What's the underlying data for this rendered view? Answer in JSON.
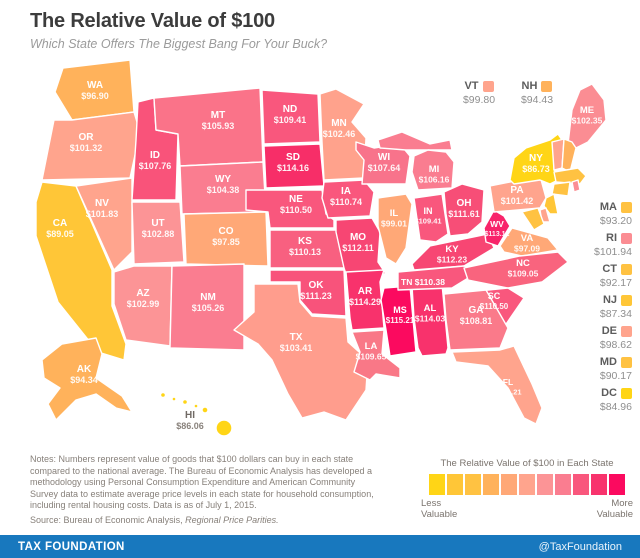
{
  "header": {
    "title": "The Relative Value of $100",
    "subtitle": "Which State Offers The Biggest Bang For Your Buck?"
  },
  "chart_data": {
    "type": "heatmap",
    "subtype": "us-choropleth-map",
    "title": "The Relative Value of $100",
    "value_meaning": "Value of goods that $100 can buy in each state vs national average, as of July 1, 2015",
    "states": [
      {
        "abbr": "WA",
        "value": 96.9,
        "display": "$96.90",
        "color": "#FFB25B"
      },
      {
        "abbr": "OR",
        "value": 101.32,
        "display": "$101.32",
        "color": "#FFA48D"
      },
      {
        "abbr": "CA",
        "value": 89.05,
        "display": "$89.05",
        "color": "#FFC637"
      },
      {
        "abbr": "NV",
        "value": 101.83,
        "display": "$101.83",
        "color": "#FFA48D"
      },
      {
        "abbr": "ID",
        "value": 107.76,
        "display": "$107.76",
        "color": "#F9537A"
      },
      {
        "abbr": "MT",
        "value": 105.93,
        "display": "$105.93",
        "color": "#FA7389"
      },
      {
        "abbr": "WY",
        "value": 104.38,
        "display": "$104.38",
        "color": "#FA7D90"
      },
      {
        "abbr": "UT",
        "value": 102.88,
        "display": "$102.88",
        "color": "#FC9496"
      },
      {
        "abbr": "CO",
        "value": 97.85,
        "display": "$97.85",
        "color": "#FFA877"
      },
      {
        "abbr": "AZ",
        "value": 102.99,
        "display": "$102.99",
        "color": "#FC9496"
      },
      {
        "abbr": "NM",
        "value": 105.26,
        "display": "$105.26",
        "color": "#FA7D90"
      },
      {
        "abbr": "ND",
        "value": 109.41,
        "display": "$109.41",
        "color": "#F9577D"
      },
      {
        "abbr": "SD",
        "value": 114.16,
        "display": "$114.16",
        "color": "#F72E68"
      },
      {
        "abbr": "NE",
        "value": 110.5,
        "display": "$110.50",
        "color": "#F9577D"
      },
      {
        "abbr": "KS",
        "value": 110.13,
        "display": "$110.13",
        "color": "#F86080"
      },
      {
        "abbr": "OK",
        "value": 111.23,
        "display": "$111.23",
        "color": "#F8537B"
      },
      {
        "abbr": "TX",
        "value": 103.41,
        "display": "$103.41",
        "color": "#FF9D8D"
      },
      {
        "abbr": "MN",
        "value": 102.46,
        "display": "$102.46",
        "color": "#FFA28C"
      },
      {
        "abbr": "IA",
        "value": 110.74,
        "display": "$110.74",
        "color": "#F9577D"
      },
      {
        "abbr": "MO",
        "value": 112.11,
        "display": "$112.11",
        "color": "#F74673"
      },
      {
        "abbr": "AR",
        "value": 114.29,
        "display": "$114.29",
        "color": "#F8326C"
      },
      {
        "abbr": "LA",
        "value": 109.65,
        "display": "$109.65",
        "color": "#F97887"
      },
      {
        "abbr": "MS",
        "value": 115.21,
        "display": "$115.21",
        "color": "#FB0A5F"
      },
      {
        "abbr": "AL",
        "value": 114.03,
        "display": "$114.03",
        "color": "#F8326C"
      },
      {
        "abbr": "WI",
        "value": 107.64,
        "display": "$107.64",
        "color": "#F8738B"
      },
      {
        "abbr": "IL",
        "value": 99.01,
        "display": "$99.01",
        "color": "#FFA877"
      },
      {
        "abbr": "IN",
        "value": 109.41,
        "display": "$109.41",
        "color": "#F9577D"
      },
      {
        "abbr": "MI",
        "value": 106.16,
        "display": "$106.16",
        "color": "#FA7D90"
      },
      {
        "abbr": "OH",
        "value": 111.61,
        "display": "$111.61",
        "color": "#F74E77"
      },
      {
        "abbr": "KY",
        "value": 112.23,
        "display": "$112.23",
        "color": "#F74673"
      },
      {
        "abbr": "TN",
        "value": 110.38,
        "display": "$110.38",
        "color": "#F9577D"
      },
      {
        "abbr": "WV",
        "value": 113.12,
        "display": "$113.12",
        "color": "#F8246A"
      },
      {
        "abbr": "VA",
        "value": 97.09,
        "display": "$97.09",
        "color": "#FFA877"
      },
      {
        "abbr": "NC",
        "value": 109.05,
        "display": "$109.05",
        "color": "#F9647E"
      },
      {
        "abbr": "SC",
        "value": 110.5,
        "display": "$110.50",
        "color": "#F9577D"
      },
      {
        "abbr": "GA",
        "value": 108.81,
        "display": "$108.81",
        "color": "#FA7A8A"
      },
      {
        "abbr": "FL",
        "value": 101.21,
        "display": "$101.21",
        "color": "#FFA48D"
      },
      {
        "abbr": "PA",
        "value": 101.42,
        "display": "$101.42",
        "color": "#FFA48D"
      },
      {
        "abbr": "NY",
        "value": 86.73,
        "display": "$86.73",
        "color": "#FFD516"
      },
      {
        "abbr": "ME",
        "value": 102.35,
        "display": "$102.35",
        "color": "#FB8D93"
      },
      {
        "abbr": "VT",
        "value": 99.8,
        "display": "$99.80",
        "color": "#FFA48D"
      },
      {
        "abbr": "NH",
        "value": 94.43,
        "display": "$94.43",
        "color": "#FFB25B"
      },
      {
        "abbr": "MA",
        "value": 93.2,
        "display": "$93.20",
        "color": "#FFC242"
      },
      {
        "abbr": "RI",
        "value": 101.94,
        "display": "$101.94",
        "color": "#FB8D93"
      },
      {
        "abbr": "CT",
        "value": 92.17,
        "display": "$92.17",
        "color": "#FFC242"
      },
      {
        "abbr": "NJ",
        "value": 87.34,
        "display": "$87.34",
        "color": "#FFC637"
      },
      {
        "abbr": "DE",
        "value": 98.62,
        "display": "$98.62",
        "color": "#FFA48D"
      },
      {
        "abbr": "MD",
        "value": 90.17,
        "display": "$90.17",
        "color": "#FFC242"
      },
      {
        "abbr": "DC",
        "value": 84.96,
        "display": "$84.96",
        "color": "#FFD516"
      },
      {
        "abbr": "AK",
        "value": 94.34,
        "display": "$94.34",
        "color": "#FFB25B"
      },
      {
        "abbr": "HI",
        "value": 86.06,
        "display": "$86.06",
        "color": "#FFD516"
      }
    ],
    "callouts_top": [
      "VT",
      "NH"
    ],
    "callouts_right": [
      "MA",
      "RI",
      "CT",
      "NJ",
      "DE",
      "MD",
      "DC"
    ]
  },
  "legend": {
    "title": "The Relative Value of $100 in Each State",
    "colors": [
      "#FFD516",
      "#FFC637",
      "#FFC242",
      "#FFB25B",
      "#FFA877",
      "#FFA48D",
      "#FC9496",
      "#FA7D90",
      "#F9577D",
      "#F8336D",
      "#FB0A5F"
    ],
    "less_label": "Less Valuable",
    "more_label": "More Valuable"
  },
  "notes": {
    "text": "Notes: Numbers represent value of goods that $100 dollars can buy in each state compared to the national average. The Bureau of Economic Analysis has developed a methodology using Personal Consumption Expenditure and American Community Survey data to estimate average price levels in each state for household consumption, including rental housing costs. Data is as of July 1, 2015.",
    "source_prefix": "Source: Bureau of Economic Analysis, ",
    "source_italic": "Regional Price Parities."
  },
  "footer": {
    "left": "TAX FOUNDATION",
    "right": "@TaxFoundation",
    "bar_color": "#1878BE"
  }
}
